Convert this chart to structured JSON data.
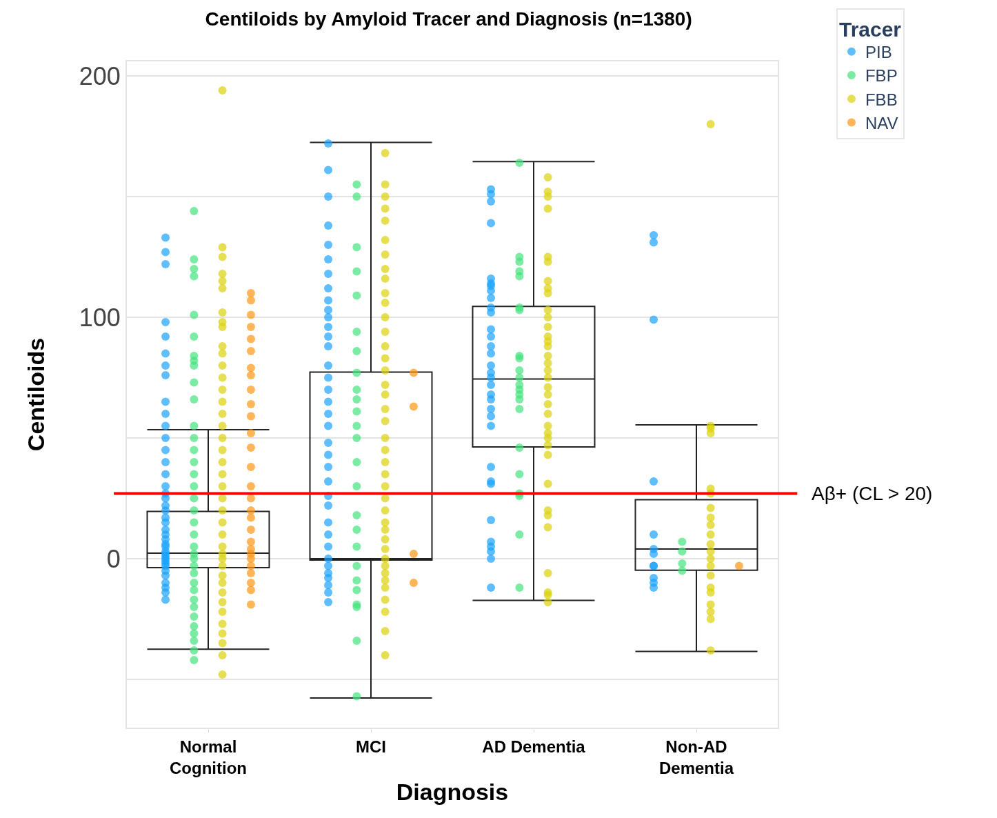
{
  "chart_data": {
    "type": "box",
    "title": "Centiloids by Amyloid Tracer and Diagnosis (n=1380)",
    "xlabel": "Diagnosis",
    "ylabel": "Centiloids",
    "legend_title": "Tracer",
    "categories": [
      "Normal Cognition",
      "MCI",
      "AD Dementia",
      "Non-AD Dementia"
    ],
    "boxes": [
      {
        "low": -37.5,
        "q1": -3.7,
        "median": 2.3,
        "q3": 19.6,
        "high": 53.4
      },
      {
        "low": -57.7,
        "q1": -0.6,
        "median": 0,
        "q3": 77.3,
        "high": 172.4
      },
      {
        "low": -17.3,
        "q1": 46.3,
        "median": 74.4,
        "q3": 104.5,
        "high": 164.5
      },
      {
        "low": -38.4,
        "q1": -4.8,
        "median": 4.0,
        "q3": 24.4,
        "high": 55.4
      }
    ],
    "series": [
      {
        "type": "scatter",
        "name": "PIB",
        "color": "#1aa3ff",
        "x": [
          "Normal Cognition",
          "Normal Cognition",
          "Normal Cognition",
          "Normal Cognition",
          "Normal Cognition",
          "Normal Cognition",
          "Normal Cognition",
          "Normal Cognition",
          "Normal Cognition",
          "Normal Cognition",
          "Normal Cognition",
          "Normal Cognition",
          "Normal Cognition",
          "Normal Cognition",
          "Normal Cognition",
          "Normal Cognition",
          "Normal Cognition",
          "Normal Cognition",
          "Normal Cognition",
          "Normal Cognition",
          "Normal Cognition",
          "Normal Cognition",
          "Normal Cognition",
          "Normal Cognition",
          "Normal Cognition",
          "Normal Cognition",
          "Normal Cognition",
          "Normal Cognition",
          "Normal Cognition",
          "Normal Cognition",
          "Normal Cognition",
          "Normal Cognition",
          "Normal Cognition",
          "Normal Cognition",
          "Normal Cognition",
          "Normal Cognition",
          "Normal Cognition",
          "Normal Cognition",
          "Normal Cognition",
          "Normal Cognition",
          "MCI",
          "MCI",
          "MCI",
          "MCI",
          "MCI",
          "MCI",
          "MCI",
          "MCI",
          "MCI",
          "MCI",
          "MCI",
          "MCI",
          "MCI",
          "MCI",
          "MCI",
          "MCI",
          "MCI",
          "MCI",
          "MCI",
          "MCI",
          "MCI",
          "MCI",
          "MCI",
          "MCI",
          "MCI",
          "MCI",
          "MCI",
          "MCI",
          "MCI",
          "MCI",
          "MCI",
          "MCI",
          "MCI",
          "MCI",
          "MCI",
          "MCI",
          "AD Dementia",
          "AD Dementia",
          "AD Dementia",
          "AD Dementia",
          "AD Dementia",
          "AD Dementia",
          "AD Dementia",
          "AD Dementia",
          "AD Dementia",
          "AD Dementia",
          "AD Dementia",
          "AD Dementia",
          "AD Dementia",
          "AD Dementia",
          "AD Dementia",
          "AD Dementia",
          "AD Dementia",
          "AD Dementia",
          "AD Dementia",
          "AD Dementia",
          "AD Dementia",
          "AD Dementia",
          "AD Dementia",
          "AD Dementia",
          "AD Dementia",
          "AD Dementia",
          "AD Dementia",
          "AD Dementia",
          "AD Dementia",
          "AD Dementia",
          "AD Dementia",
          "AD Dementia",
          "AD Dementia",
          "Non-AD Dementia",
          "Non-AD Dementia",
          "Non-AD Dementia",
          "Non-AD Dementia",
          "Non-AD Dementia",
          "Non-AD Dementia",
          "Non-AD Dementia",
          "Non-AD Dementia",
          "Non-AD Dementia",
          "Non-AD Dementia",
          "Non-AD Dementia",
          "Non-AD Dementia"
        ],
        "values": [
          133,
          127,
          122,
          98,
          92,
          85,
          80,
          76,
          65,
          60,
          55,
          50,
          45,
          40,
          35,
          30,
          27,
          25,
          22,
          20,
          17,
          15,
          12,
          10,
          8,
          6,
          5,
          3,
          2,
          1,
          0,
          -1,
          -2,
          -3,
          -5,
          -7,
          -10,
          -12,
          -14,
          -17,
          172,
          161,
          150,
          138,
          130,
          124,
          118,
          112,
          107,
          103,
          100,
          96,
          92,
          88,
          80,
          75,
          70,
          65,
          60,
          55,
          48,
          43,
          38,
          32,
          26,
          22,
          15,
          10,
          5,
          0,
          -3,
          -6,
          -8,
          -11,
          -14,
          -18,
          153,
          151,
          148,
          139,
          116,
          114,
          113,
          111,
          108,
          104,
          102,
          95,
          92,
          88,
          85,
          80,
          77,
          75,
          72,
          68,
          66,
          62,
          59,
          55,
          38,
          32,
          31,
          16,
          7,
          5,
          3,
          0,
          -12,
          134,
          131,
          99,
          32,
          10,
          4,
          2,
          -3,
          -3,
          -8,
          -10,
          -12
        ]
      },
      {
        "type": "scatter",
        "name": "FBP",
        "color": "#45e27d",
        "x": [
          "Normal Cognition",
          "Normal Cognition",
          "Normal Cognition",
          "Normal Cognition",
          "Normal Cognition",
          "Normal Cognition",
          "Normal Cognition",
          "Normal Cognition",
          "Normal Cognition",
          "Normal Cognition",
          "Normal Cognition",
          "Normal Cognition",
          "Normal Cognition",
          "Normal Cognition",
          "Normal Cognition",
          "Normal Cognition",
          "Normal Cognition",
          "Normal Cognition",
          "Normal Cognition",
          "Normal Cognition",
          "Normal Cognition",
          "Normal Cognition",
          "Normal Cognition",
          "Normal Cognition",
          "Normal Cognition",
          "Normal Cognition",
          "Normal Cognition",
          "Normal Cognition",
          "Normal Cognition",
          "Normal Cognition",
          "Normal Cognition",
          "Normal Cognition",
          "Normal Cognition",
          "Normal Cognition",
          "Normal Cognition",
          "Normal Cognition",
          "MCI",
          "MCI",
          "MCI",
          "MCI",
          "MCI",
          "MCI",
          "MCI",
          "MCI",
          "MCI",
          "MCI",
          "MCI",
          "MCI",
          "MCI",
          "MCI",
          "MCI",
          "MCI",
          "MCI",
          "MCI",
          "MCI",
          "MCI",
          "MCI",
          "MCI",
          "MCI",
          "MCI",
          "MCI",
          "AD Dementia",
          "AD Dementia",
          "AD Dementia",
          "AD Dementia",
          "AD Dementia",
          "AD Dementia",
          "AD Dementia",
          "AD Dementia",
          "AD Dementia",
          "AD Dementia",
          "AD Dementia",
          "AD Dementia",
          "AD Dementia",
          "AD Dementia",
          "AD Dementia",
          "AD Dementia",
          "AD Dementia",
          "AD Dementia",
          "AD Dementia",
          "AD Dementia",
          "AD Dementia",
          "AD Dementia",
          "Non-AD Dementia",
          "Non-AD Dementia",
          "Non-AD Dementia",
          "Non-AD Dementia"
        ],
        "values": [
          144,
          124,
          120,
          117,
          101,
          92,
          84,
          82,
          80,
          73,
          66,
          55,
          50,
          45,
          40,
          35,
          30,
          25,
          20,
          15,
          10,
          5,
          2,
          0,
          -3,
          -6,
          -10,
          -13,
          -17,
          -20,
          -24,
          -28,
          -31,
          -34,
          -38,
          -42,
          155,
          150,
          129,
          119,
          109,
          94,
          86,
          77,
          70,
          66,
          61,
          55,
          50,
          40,
          30,
          18,
          12,
          5,
          -3,
          -9,
          -13,
          -19,
          -20,
          -34,
          -57,
          164,
          125,
          123,
          119,
          117,
          104,
          103,
          84,
          83,
          78,
          75,
          72,
          70,
          68,
          66,
          62,
          46,
          35,
          27,
          26,
          10,
          -12,
          7,
          3,
          -2,
          -5
        ]
      },
      {
        "type": "scatter",
        "name": "FBB",
        "color": "#dcd10a",
        "x": [
          "Normal Cognition",
          "Normal Cognition",
          "Normal Cognition",
          "Normal Cognition",
          "Normal Cognition",
          "Normal Cognition",
          "Normal Cognition",
          "Normal Cognition",
          "Normal Cognition",
          "Normal Cognition",
          "Normal Cognition",
          "Normal Cognition",
          "Normal Cognition",
          "Normal Cognition",
          "Normal Cognition",
          "Normal Cognition",
          "Normal Cognition",
          "Normal Cognition",
          "Normal Cognition",
          "Normal Cognition",
          "Normal Cognition",
          "Normal Cognition",
          "Normal Cognition",
          "Normal Cognition",
          "Normal Cognition",
          "Normal Cognition",
          "Normal Cognition",
          "Normal Cognition",
          "Normal Cognition",
          "Normal Cognition",
          "Normal Cognition",
          "Normal Cognition",
          "Normal Cognition",
          "Normal Cognition",
          "Normal Cognition",
          "Normal Cognition",
          "Normal Cognition",
          "Normal Cognition",
          "Normal Cognition",
          "Normal Cognition",
          "MCI",
          "MCI",
          "MCI",
          "MCI",
          "MCI",
          "MCI",
          "MCI",
          "MCI",
          "MCI",
          "MCI",
          "MCI",
          "MCI",
          "MCI",
          "MCI",
          "MCI",
          "MCI",
          "MCI",
          "MCI",
          "MCI",
          "MCI",
          "MCI",
          "MCI",
          "MCI",
          "MCI",
          "MCI",
          "MCI",
          "MCI",
          "MCI",
          "MCI",
          "MCI",
          "MCI",
          "MCI",
          "MCI",
          "MCI",
          "MCI",
          "MCI",
          "MCI",
          "MCI",
          "MCI",
          "MCI",
          "AD Dementia",
          "AD Dementia",
          "AD Dementia",
          "AD Dementia",
          "AD Dementia",
          "AD Dementia",
          "AD Dementia",
          "AD Dementia",
          "AD Dementia",
          "AD Dementia",
          "AD Dementia",
          "AD Dementia",
          "AD Dementia",
          "AD Dementia",
          "AD Dementia",
          "AD Dementia",
          "AD Dementia",
          "AD Dementia",
          "AD Dementia",
          "AD Dementia",
          "AD Dementia",
          "AD Dementia",
          "AD Dementia",
          "AD Dementia",
          "AD Dementia",
          "AD Dementia",
          "AD Dementia",
          "AD Dementia",
          "AD Dementia",
          "AD Dementia",
          "AD Dementia",
          "AD Dementia",
          "AD Dementia",
          "AD Dementia",
          "AD Dementia",
          "AD Dementia",
          "Non-AD Dementia",
          "Non-AD Dementia",
          "Non-AD Dementia",
          "Non-AD Dementia",
          "Non-AD Dementia",
          "Non-AD Dementia",
          "Non-AD Dementia",
          "Non-AD Dementia",
          "Non-AD Dementia",
          "Non-AD Dementia",
          "Non-AD Dementia",
          "Non-AD Dementia",
          "Non-AD Dementia",
          "Non-AD Dementia",
          "Non-AD Dementia",
          "Non-AD Dementia",
          "Non-AD Dementia",
          "Non-AD Dementia",
          "Non-AD Dementia",
          "Non-AD Dementia",
          "Non-AD Dementia"
        ],
        "values": [
          194,
          129,
          125,
          118,
          115,
          112,
          102,
          98,
          96,
          88,
          85,
          80,
          75,
          70,
          65,
          60,
          55,
          50,
          45,
          40,
          35,
          30,
          25,
          20,
          15,
          10,
          5,
          2,
          0,
          -3,
          -7,
          -10,
          -14,
          -18,
          -22,
          -27,
          -31,
          -35,
          -40,
          -48,
          168,
          155,
          150,
          145,
          140,
          132,
          126,
          120,
          116,
          110,
          106,
          100,
          94,
          88,
          83,
          78,
          72,
          68,
          62,
          57,
          50,
          45,
          40,
          35,
          30,
          25,
          20,
          15,
          12,
          8,
          4,
          0,
          -3,
          -6,
          -9,
          -12,
          -17,
          -22,
          -30,
          -40,
          158,
          152,
          150,
          145,
          125,
          123,
          115,
          112,
          110,
          103,
          100,
          96,
          92,
          90,
          88,
          84,
          81,
          78,
          75,
          71,
          68,
          64,
          60,
          55,
          52,
          50,
          47,
          43,
          31,
          20,
          18,
          13,
          -6,
          -14,
          -15,
          -18,
          180,
          55,
          54,
          52,
          29,
          27,
          21,
          17,
          14,
          10,
          6,
          3,
          0,
          -3,
          -7,
          -12,
          -14,
          -19,
          -22,
          -25,
          -38
        ]
      },
      {
        "type": "scatter",
        "name": "NAV",
        "color": "#ff9514",
        "x": [
          "Normal Cognition",
          "Normal Cognition",
          "Normal Cognition",
          "Normal Cognition",
          "Normal Cognition",
          "Normal Cognition",
          "Normal Cognition",
          "Normal Cognition",
          "Normal Cognition",
          "Normal Cognition",
          "Normal Cognition",
          "Normal Cognition",
          "Normal Cognition",
          "Normal Cognition",
          "Normal Cognition",
          "Normal Cognition",
          "Normal Cognition",
          "Normal Cognition",
          "Normal Cognition",
          "Normal Cognition",
          "Normal Cognition",
          "Normal Cognition",
          "Normal Cognition",
          "Normal Cognition",
          "Normal Cognition",
          "Normal Cognition",
          "Normal Cognition",
          "Normal Cognition",
          "MCI",
          "MCI",
          "MCI",
          "MCI",
          "Non-AD Dementia"
        ],
        "values": [
          110,
          107,
          101,
          96,
          91,
          86,
          79,
          76,
          70,
          64,
          59,
          52,
          46,
          38,
          30,
          25,
          20,
          17,
          12,
          7,
          4,
          2,
          0,
          -3,
          -6,
          -10,
          -13,
          -19,
          77,
          63,
          2,
          -10,
          -3
        ]
      }
    ],
    "ylim": [
      -70,
      206
    ],
    "yticks": [
      {
        "value": -50,
        "label": null
      },
      0,
      {
        "value": 50,
        "label": null
      },
      100,
      {
        "value": 150,
        "label": null
      },
      200
    ],
    "grid": "y",
    "marker": "circle",
    "legend": "top right",
    "ref_lines": [
      {
        "axis": "y",
        "value": 27,
        "label": "Aβ+ (CL > 20)",
        "color": "#ff0000"
      }
    ]
  }
}
